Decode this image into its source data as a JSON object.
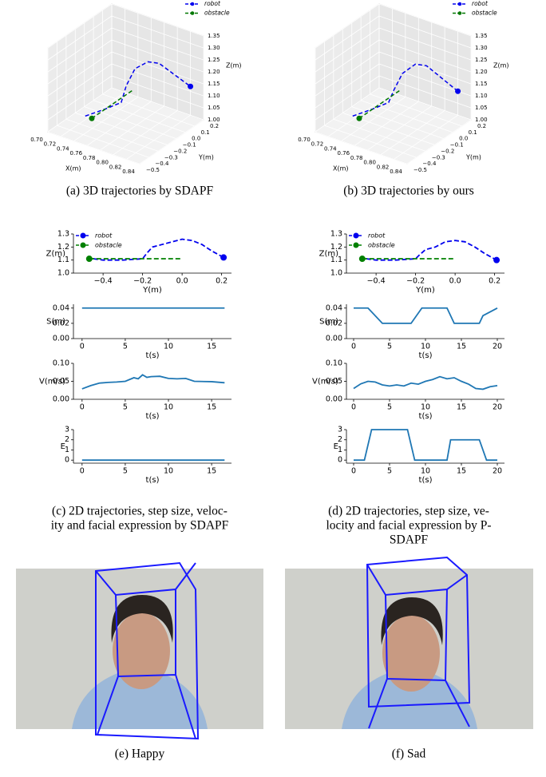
{
  "chart_data": [
    {
      "type": "line3d",
      "xlabel": "X(m)",
      "ylabel": "Y(m)",
      "zlabel": "Z(m)",
      "xlim": [
        0.7,
        0.84
      ],
      "ylim": [
        -0.5,
        0.2
      ],
      "zlim": [
        1.0,
        1.35
      ],
      "xticks": [
        {
          "value": 0.7,
          "label": "0.70"
        },
        0.72,
        0.74,
        0.76,
        0.78,
        {
          "value": 0.8,
          "label": "0.80"
        },
        0.82,
        0.84
      ],
      "yticks": [
        {
          "value": -0.5,
          "label": "−0.5"
        },
        {
          "value": -0.4,
          "label": "−0.4"
        },
        {
          "value": -0.3,
          "label": "−0.3"
        },
        {
          "value": -0.2,
          "label": "−0.2"
        },
        {
          "value": -0.1,
          "label": "−0.1"
        },
        {
          "value": 0.0,
          "label": "0.0"
        },
        0.1,
        0.2
      ],
      "zticks": [
        {
          "value": 1.0,
          "label": "1.00"
        },
        1.05,
        {
          "value": 1.1,
          "label": "1.10"
        },
        1.15,
        {
          "value": 1.2,
          "label": "1.20"
        },
        1.25,
        {
          "value": 1.3,
          "label": "1.30"
        },
        1.35
      ],
      "series": [
        {
          "name": "robot",
          "color": "#0000ee",
          "marker_at": "end",
          "x": [
            0.75,
            0.76,
            0.77,
            0.775,
            0.78,
            0.79,
            0.8,
            0.82
          ],
          "y": [
            -0.45,
            -0.3,
            -0.2,
            -0.18,
            -0.12,
            -0.05,
            0.0,
            0.2
          ],
          "z": [
            1.1,
            1.1,
            1.11,
            1.18,
            1.24,
            1.26,
            1.25,
            1.12
          ]
        },
        {
          "name": "obstacle",
          "color": "#007700",
          "marker_at": "start",
          "x": [
            0.76,
            0.76
          ],
          "y": [
            -0.45,
            0.0
          ],
          "z": [
            1.1,
            1.1
          ]
        }
      ]
    },
    {
      "type": "line3d",
      "xlabel": "X(m)",
      "ylabel": "Y(m)",
      "zlabel": "Z(m)",
      "xlim": [
        0.7,
        0.84
      ],
      "ylim": [
        -0.5,
        0.2
      ],
      "zlim": [
        1.0,
        1.35
      ],
      "xticks": [
        {
          "value": 0.7,
          "label": "0.70"
        },
        0.72,
        0.74,
        0.76,
        0.78,
        {
          "value": 0.8,
          "label": "0.80"
        },
        0.82,
        0.84
      ],
      "yticks": [
        {
          "value": -0.5,
          "label": "−0.5"
        },
        {
          "value": -0.4,
          "label": "−0.4"
        },
        {
          "value": -0.3,
          "label": "−0.3"
        },
        {
          "value": -0.2,
          "label": "−0.2"
        },
        {
          "value": -0.1,
          "label": "−0.1"
        },
        {
          "value": 0.0,
          "label": "0.0"
        },
        0.1,
        0.2
      ],
      "zticks": [
        {
          "value": 1.0,
          "label": "1.00"
        },
        1.05,
        {
          "value": 1.1,
          "label": "1.10"
        },
        1.15,
        {
          "value": 1.2,
          "label": "1.20"
        },
        1.25,
        {
          "value": 1.3,
          "label": "1.30"
        },
        1.35
      ],
      "series": [
        {
          "name": "robot",
          "color": "#0000ee",
          "marker_at": "end",
          "x": [
            0.75,
            0.76,
            0.77,
            0.775,
            0.78,
            0.79,
            0.8,
            0.82
          ],
          "y": [
            -0.45,
            -0.3,
            -0.2,
            -0.18,
            -0.12,
            -0.05,
            0.0,
            0.2
          ],
          "z": [
            1.1,
            1.1,
            1.11,
            1.16,
            1.22,
            1.25,
            1.24,
            1.1
          ]
        },
        {
          "name": "obstacle",
          "color": "#007700",
          "marker_at": "start",
          "x": [
            0.76,
            0.76
          ],
          "y": [
            -0.45,
            0.0
          ],
          "z": [
            1.1,
            1.1
          ]
        }
      ]
    },
    {
      "type": "line",
      "xlabel": "Y(m)",
      "ylabel": "Z(m)",
      "xlim": [
        -0.55,
        0.25
      ],
      "ylim": [
        1.0,
        1.3
      ],
      "xticks": [
        {
          "value": -0.4,
          "label": "−0.4"
        },
        {
          "value": -0.2,
          "label": "−0.2"
        },
        {
          "value": 0.0,
          "label": "0.0"
        },
        0.2
      ],
      "yticks": [
        {
          "value": 1.0,
          "label": "1.0"
        },
        1.1,
        1.2,
        1.3
      ],
      "series": [
        {
          "name": "robot",
          "color": "#0000ee",
          "marker_at": "end",
          "x": [
            -0.45,
            -0.4,
            -0.3,
            -0.2,
            -0.18,
            -0.15,
            -0.1,
            -0.05,
            0.0,
            0.05,
            0.1,
            0.15,
            0.21
          ],
          "values": [
            1.11,
            1.1,
            1.1,
            1.11,
            1.15,
            1.2,
            1.22,
            1.24,
            1.26,
            1.25,
            1.22,
            1.17,
            1.12
          ]
        },
        {
          "name": "obstacle",
          "color": "#008000",
          "marker_at": "start",
          "x": [
            -0.47,
            0.0
          ],
          "values": [
            1.11,
            1.11
          ]
        }
      ]
    },
    {
      "type": "line",
      "xlabel": "t(s)",
      "ylabel": "S(m)",
      "xlim": [
        -1,
        17.3
      ],
      "ylim": [
        0,
        0.045
      ],
      "color": "#1f77b4",
      "xticks": [
        0,
        5,
        10,
        15
      ],
      "yticks": [
        {
          "value": 0,
          "label": "0.00"
        },
        0.02,
        0.04
      ],
      "x": [
        0,
        16.5
      ],
      "values": [
        0.04,
        0.04
      ]
    },
    {
      "type": "line",
      "xlabel": "t(s)",
      "ylabel": "V(m/s)",
      "xlim": [
        -1,
        17.3
      ],
      "ylim": [
        0,
        0.1
      ],
      "color": "#1f77b4",
      "xticks": [
        0,
        5,
        10,
        15
      ],
      "yticks": [
        {
          "value": 0,
          "label": "0.00"
        },
        0.05,
        {
          "value": 0.1,
          "label": "0.10"
        }
      ],
      "x": [
        0,
        1,
        2,
        3,
        4,
        5,
        6,
        6.5,
        7,
        7.5,
        8,
        9,
        10,
        11,
        12,
        13,
        15,
        16.5
      ],
      "values": [
        0.029,
        0.038,
        0.045,
        0.047,
        0.048,
        0.05,
        0.06,
        0.057,
        0.068,
        0.061,
        0.063,
        0.064,
        0.058,
        0.057,
        0.058,
        0.05,
        0.049,
        0.046
      ]
    },
    {
      "type": "line",
      "xlabel": "t(s)",
      "ylabel": "E",
      "xlim": [
        -1,
        17.3
      ],
      "ylim": [
        -0.3,
        3
      ],
      "color": "#1f77b4",
      "xticks": [
        0,
        5,
        10,
        15
      ],
      "yticks": [
        0,
        1,
        2,
        3
      ],
      "x": [
        0,
        16.5
      ],
      "values": [
        0,
        0
      ]
    },
    {
      "type": "line",
      "xlabel": "Y(m)",
      "ylabel": "Z(m)",
      "xlim": [
        -0.55,
        0.25
      ],
      "ylim": [
        1.0,
        1.3
      ],
      "xticks": [
        {
          "value": -0.4,
          "label": "−0.4"
        },
        {
          "value": -0.2,
          "label": "−0.2"
        },
        {
          "value": 0.0,
          "label": "0.0"
        },
        0.2
      ],
      "yticks": [
        {
          "value": 1.0,
          "label": "1.0"
        },
        1.1,
        1.2,
        1.3
      ],
      "series": [
        {
          "name": "robot",
          "color": "#0000ee",
          "marker_at": "end",
          "x": [
            -0.45,
            -0.4,
            -0.3,
            -0.2,
            -0.18,
            -0.15,
            -0.1,
            -0.05,
            0.0,
            0.05,
            0.1,
            0.15,
            0.21
          ],
          "values": [
            1.11,
            1.1,
            1.1,
            1.11,
            1.14,
            1.18,
            1.2,
            1.24,
            1.25,
            1.24,
            1.2,
            1.15,
            1.1
          ]
        },
        {
          "name": "obstacle",
          "color": "#008000",
          "marker_at": "start",
          "x": [
            -0.47,
            0.0
          ],
          "values": [
            1.11,
            1.11
          ]
        }
      ]
    },
    {
      "type": "line",
      "xlabel": "t(s)",
      "ylabel": "S(m)",
      "xlim": [
        -1,
        21
      ],
      "ylim": [
        0,
        0.045
      ],
      "color": "#1f77b4",
      "xticks": [
        0,
        5,
        10,
        15,
        20
      ],
      "yticks": [
        {
          "value": 0,
          "label": "0.00"
        },
        0.02,
        0.04
      ],
      "x": [
        0,
        2,
        4,
        8,
        9.5,
        13,
        14,
        17.5,
        18,
        20
      ],
      "values": [
        0.04,
        0.04,
        0.02,
        0.02,
        0.04,
        0.04,
        0.02,
        0.02,
        0.03,
        0.04
      ]
    },
    {
      "type": "line",
      "xlabel": "t(s)",
      "ylabel": "V(m/s)",
      "xlim": [
        -1,
        21
      ],
      "ylim": [
        0,
        0.1
      ],
      "color": "#1f77b4",
      "xticks": [
        0,
        5,
        10,
        15,
        20
      ],
      "yticks": [
        {
          "value": 0,
          "label": "0.00"
        },
        0.05,
        {
          "value": 0.1,
          "label": "0.10"
        }
      ],
      "x": [
        0,
        1,
        2,
        3,
        4,
        5,
        6,
        7,
        8,
        9,
        10,
        11,
        12,
        13,
        14,
        15,
        16,
        17,
        18,
        19,
        20
      ],
      "values": [
        0.03,
        0.043,
        0.05,
        0.048,
        0.04,
        0.037,
        0.04,
        0.037,
        0.045,
        0.042,
        0.05,
        0.055,
        0.063,
        0.057,
        0.06,
        0.05,
        0.042,
        0.03,
        0.028,
        0.035,
        0.038
      ]
    },
    {
      "type": "line",
      "xlabel": "t(s)",
      "ylabel": "E",
      "xlim": [
        -1,
        21
      ],
      "ylim": [
        -0.3,
        3
      ],
      "color": "#1f77b4",
      "xticks": [
        0,
        5,
        10,
        15,
        20
      ],
      "yticks": [
        0,
        1,
        2,
        3
      ],
      "x": [
        0,
        1.5,
        2.5,
        7.5,
        8.5,
        13,
        13.5,
        17.5,
        18.5,
        20
      ],
      "values": [
        0,
        0,
        3,
        3,
        0,
        0,
        2,
        2,
        0,
        0
      ]
    }
  ],
  "captions": [
    [
      "(a) 3D trajectories by SDAPF"
    ],
    [
      "(b) 3D trajectories by ours"
    ],
    [
      "(c) 2D trajectories, step size, veloc-",
      "ity and facial expression by SDAPF"
    ],
    [
      "(d) 2D trajectories, step size, ve-",
      "locity and facial expression by P-",
      "SDAPF"
    ],
    [
      "(e) Happy"
    ],
    [
      "(f) Sad"
    ]
  ]
}
